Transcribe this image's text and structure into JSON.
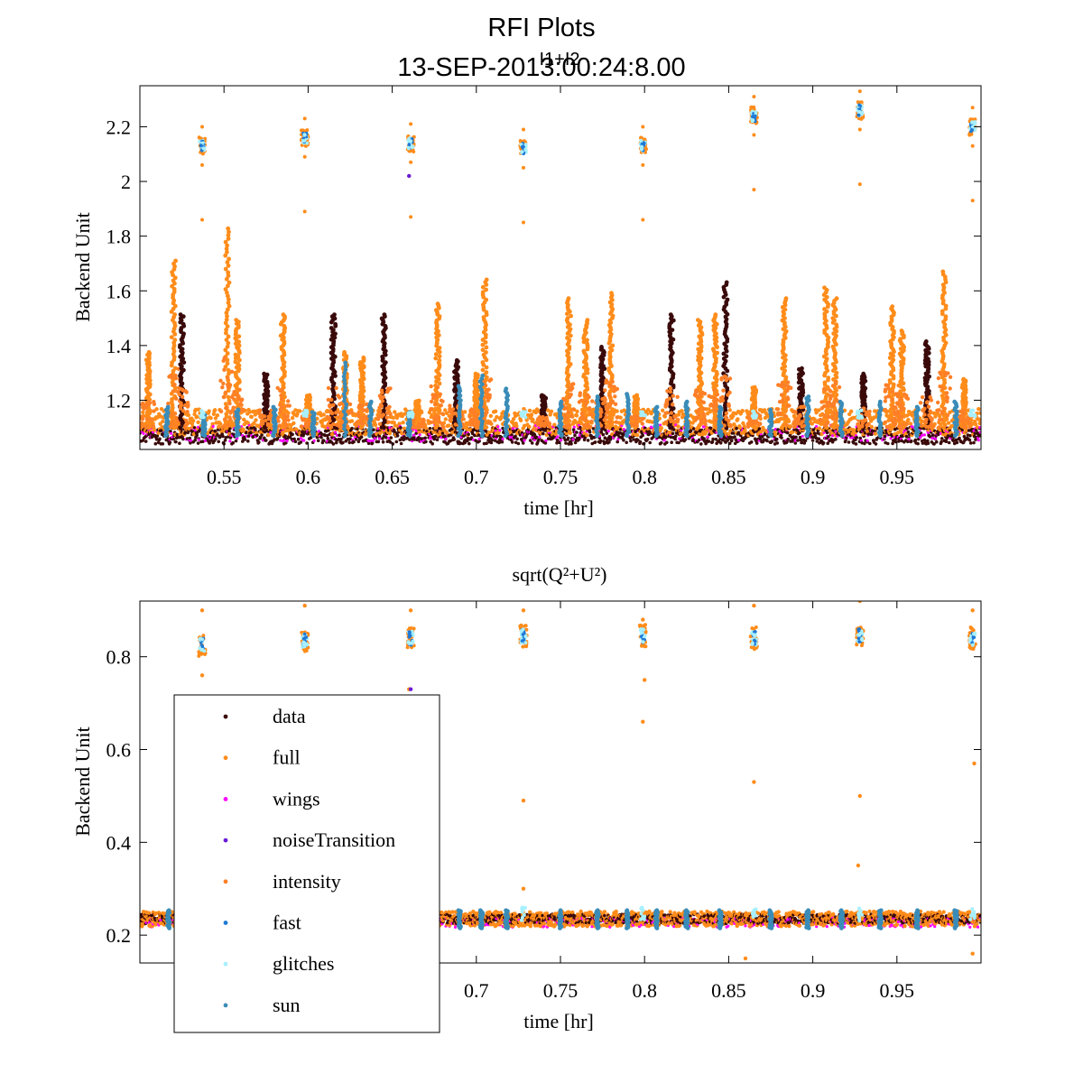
{
  "figure": {
    "title": "RFI Plots",
    "subtitle": "13-SEP-2013:00:24:8.00",
    "overlay_label": "I1+I2"
  },
  "chart_data": [
    {
      "type": "scatter",
      "panel": "top",
      "title": "I1+I2",
      "xlabel": "time [hr]",
      "ylabel": "Backend Unit",
      "xlim": [
        0.5,
        1.0
      ],
      "ylim": [
        1.02,
        2.35
      ],
      "xticks": [
        0.55,
        0.6,
        0.65,
        0.7,
        0.75,
        0.8,
        0.85,
        0.9,
        0.95
      ],
      "yticks": [
        1.2,
        1.4,
        1.6,
        1.8,
        2.0,
        2.2
      ],
      "ytick_labels": [
        "1.2",
        "1.4",
        "1.6",
        "1.8",
        "2",
        "2.2"
      ],
      "baseline": 1.1,
      "noise_cal_times": [
        0.537,
        0.598,
        0.661,
        0.728,
        0.799,
        0.865,
        0.928,
        0.995
      ],
      "noise_cal_levels": [
        2.13,
        2.16,
        2.14,
        2.12,
        2.13,
        2.24,
        2.26,
        2.2
      ],
      "spikes": [
        {
          "t": 0.505,
          "peak": 1.38
        },
        {
          "t": 0.52,
          "peak": 1.72
        },
        {
          "t": 0.525,
          "peak": 1.52
        },
        {
          "t": 0.552,
          "peak": 1.84
        },
        {
          "t": 0.558,
          "peak": 1.5
        },
        {
          "t": 0.575,
          "peak": 1.3
        },
        {
          "t": 0.585,
          "peak": 1.52
        },
        {
          "t": 0.6,
          "peak": 1.22
        },
        {
          "t": 0.615,
          "peak": 1.52
        },
        {
          "t": 0.622,
          "peak": 1.38
        },
        {
          "t": 0.632,
          "peak": 1.36
        },
        {
          "t": 0.645,
          "peak": 1.52
        },
        {
          "t": 0.665,
          "peak": 1.2
        },
        {
          "t": 0.677,
          "peak": 1.56
        },
        {
          "t": 0.688,
          "peak": 1.35
        },
        {
          "t": 0.7,
          "peak": 1.3
        },
        {
          "t": 0.705,
          "peak": 1.65
        },
        {
          "t": 0.74,
          "peak": 1.22
        },
        {
          "t": 0.755,
          "peak": 1.58
        },
        {
          "t": 0.765,
          "peak": 1.5
        },
        {
          "t": 0.775,
          "peak": 1.4
        },
        {
          "t": 0.78,
          "peak": 1.6
        },
        {
          "t": 0.795,
          "peak": 1.22
        },
        {
          "t": 0.816,
          "peak": 1.52
        },
        {
          "t": 0.833,
          "peak": 1.5
        },
        {
          "t": 0.842,
          "peak": 1.52
        },
        {
          "t": 0.848,
          "peak": 1.64
        },
        {
          "t": 0.865,
          "peak": 1.25
        },
        {
          "t": 0.883,
          "peak": 1.58
        },
        {
          "t": 0.893,
          "peak": 1.32
        },
        {
          "t": 0.908,
          "peak": 1.62
        },
        {
          "t": 0.913,
          "peak": 1.58
        },
        {
          "t": 0.93,
          "peak": 1.3
        },
        {
          "t": 0.947,
          "peak": 1.55
        },
        {
          "t": 0.953,
          "peak": 1.46
        },
        {
          "t": 0.968,
          "peak": 1.42
        },
        {
          "t": 0.978,
          "peak": 1.68
        },
        {
          "t": 0.99,
          "peak": 1.28
        }
      ],
      "sun_times": [
        0.516,
        0.538,
        0.558,
        0.58,
        0.603,
        0.622,
        0.637,
        0.66,
        0.69,
        0.703,
        0.718,
        0.75,
        0.772,
        0.79,
        0.807,
        0.825,
        0.845,
        0.875,
        0.897,
        0.917,
        0.94,
        0.962,
        0.985
      ],
      "sun_peaks": [
        1.18,
        1.15,
        1.17,
        1.18,
        1.16,
        1.35,
        1.2,
        1.16,
        1.26,
        1.3,
        1.25,
        1.2,
        1.22,
        1.23,
        1.18,
        1.2,
        1.18,
        1.17,
        1.22,
        1.2,
        1.2,
        1.18,
        1.2
      ]
    },
    {
      "type": "scatter",
      "panel": "bottom",
      "title": "sqrt(Q²+U²)",
      "xlabel": "time [hr]",
      "ylabel": "Backend Unit",
      "xlim": [
        0.5,
        1.0
      ],
      "ylim": [
        0.14,
        0.92
      ],
      "xticks": [
        0.7,
        0.75,
        0.8,
        0.85,
        0.9,
        0.95
      ],
      "yticks": [
        0.2,
        0.4,
        0.6,
        0.8
      ],
      "ytick_labels": [
        "0.2",
        "0.4",
        "0.6",
        "0.8"
      ],
      "baseline": 0.235,
      "noise_cal_times": [
        0.537,
        0.598,
        0.661,
        0.728,
        0.799,
        0.865,
        0.928,
        0.995
      ],
      "noise_cal_levels": [
        0.825,
        0.835,
        0.84,
        0.845,
        0.845,
        0.84,
        0.845,
        0.84
      ],
      "outliers": [
        {
          "t": 0.537,
          "v": 0.9
        },
        {
          "t": 0.537,
          "v": 0.76
        },
        {
          "t": 0.598,
          "v": 0.91
        },
        {
          "t": 0.661,
          "v": 0.9
        },
        {
          "t": 0.66,
          "v": 0.73
        },
        {
          "t": 0.728,
          "v": 0.9
        },
        {
          "t": 0.728,
          "v": 0.49
        },
        {
          "t": 0.728,
          "v": 0.3
        },
        {
          "t": 0.799,
          "v": 0.88
        },
        {
          "t": 0.799,
          "v": 0.66
        },
        {
          "t": 0.8,
          "v": 0.75
        },
        {
          "t": 0.865,
          "v": 0.91
        },
        {
          "t": 0.865,
          "v": 0.53
        },
        {
          "t": 0.928,
          "v": 0.92
        },
        {
          "t": 0.928,
          "v": 0.5
        },
        {
          "t": 0.927,
          "v": 0.35
        },
        {
          "t": 0.995,
          "v": 0.9
        },
        {
          "t": 0.996,
          "v": 0.57
        },
        {
          "t": 0.995,
          "v": 0.16
        },
        {
          "t": 0.86,
          "v": 0.15
        }
      ],
      "sun_times": [
        0.517,
        0.54,
        0.56,
        0.58,
        0.603,
        0.622,
        0.638,
        0.66,
        0.69,
        0.703,
        0.718,
        0.75,
        0.772,
        0.79,
        0.807,
        0.825,
        0.845,
        0.875,
        0.897,
        0.917,
        0.94,
        0.962,
        0.985
      ]
    }
  ],
  "legend": {
    "position": "lower-left of bottom panel",
    "entries": [
      {
        "label": "data",
        "color": "#3a0a0a"
      },
      {
        "label": "full",
        "color": "#ff8c1a"
      },
      {
        "label": "wings",
        "color": "#ff00ff"
      },
      {
        "label": "noiseTransition",
        "color": "#6a1ad6"
      },
      {
        "label": "intensity",
        "color": "#ff7f27"
      },
      {
        "label": "fast",
        "color": "#1f78d4"
      },
      {
        "label": "glitches",
        "color": "#a8f0ff"
      },
      {
        "label": "sun",
        "color": "#3a8cb8"
      }
    ]
  }
}
